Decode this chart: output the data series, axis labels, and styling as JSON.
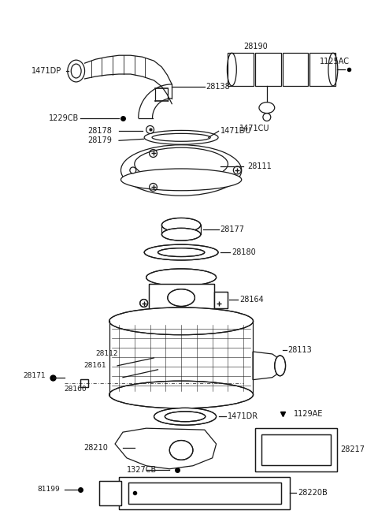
{
  "bg_color": "#ffffff",
  "line_color": "#1a1a1a",
  "text_color": "#1a1a1a",
  "figsize": [
    4.8,
    6.57
  ],
  "dpi": 100,
  "xlim": [
    0,
    480
  ],
  "ylim": [
    0,
    657
  ]
}
